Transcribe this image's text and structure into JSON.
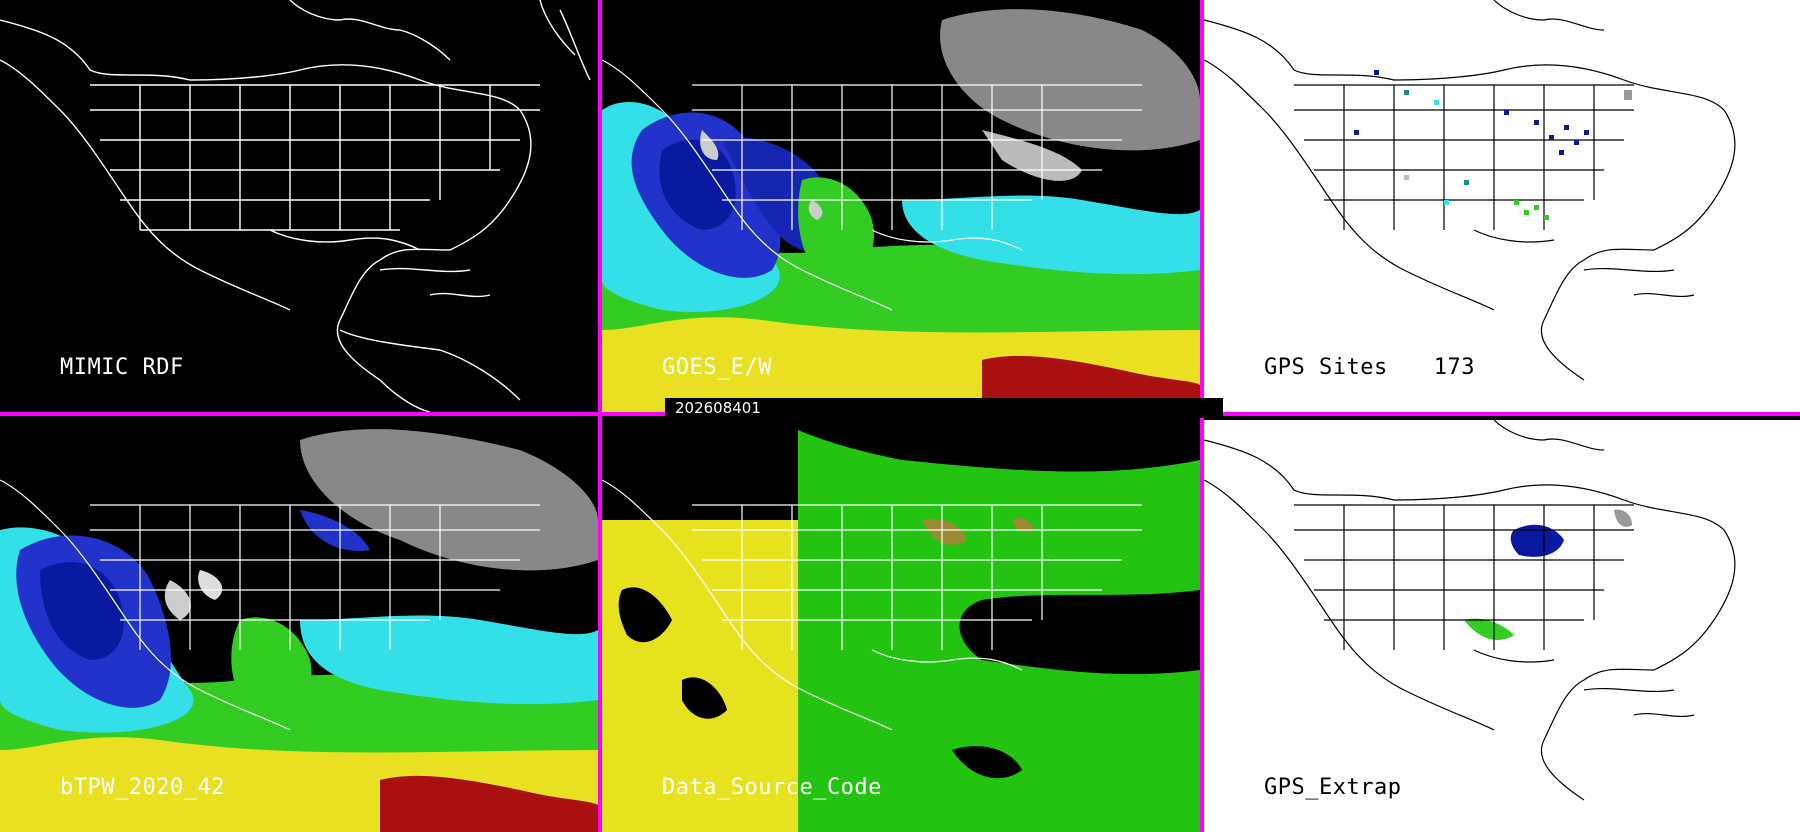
{
  "panels": [
    {
      "id": "mimic-rdf",
      "label": "MIMIC RDF",
      "theme": "dark"
    },
    {
      "id": "goes-ew",
      "label": "GOES_E/W",
      "theme": "dark"
    },
    {
      "id": "gps-sites",
      "label": "GPS Sites",
      "count": "173",
      "theme": "light"
    },
    {
      "id": "btpw",
      "label": "bTPW_2020_42",
      "theme": "dark"
    },
    {
      "id": "data-source-code",
      "label": "Data_Source_Code",
      "theme": "dark"
    },
    {
      "id": "gps-extrap",
      "label": "GPS_Extrap",
      "theme": "light"
    }
  ],
  "timestamp": "202608401",
  "colors": {
    "divider": "#ff00ff",
    "outline_dark": "#ffffff",
    "outline_light": "#000000",
    "pw_navy": "#0a1aa0",
    "pw_blue": "#2233cc",
    "pw_cyan": "#33e0e8",
    "pw_green": "#33cc22",
    "pw_yellow": "#e8e020",
    "pw_red": "#aa1010",
    "pw_gray": "#bbbbbb",
    "src_yellow": "#e6e21e",
    "src_green": "#22c411",
    "src_olive": "#9a8a30"
  }
}
